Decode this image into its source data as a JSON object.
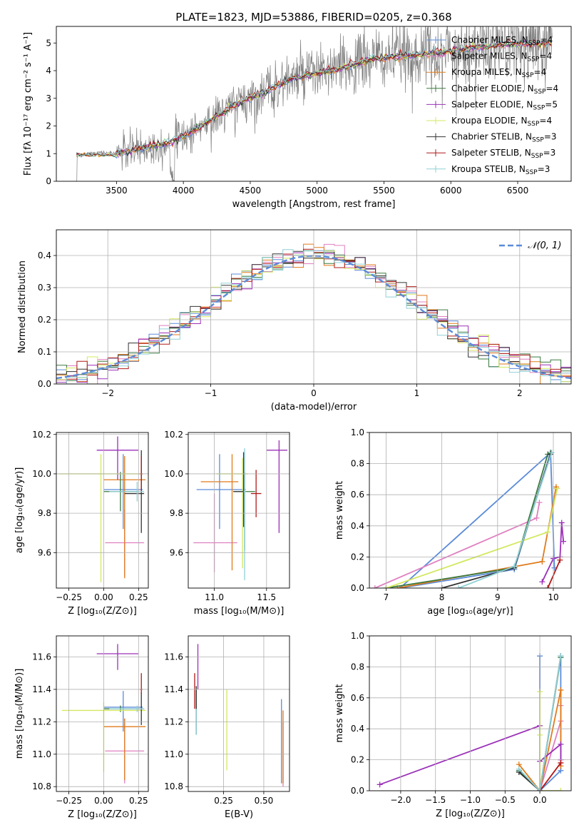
{
  "title": "PLATE=1823, MJD=53886, FIBERID=0205, z=0.368",
  "colors": {
    "Chabrier MILES": "#5b8bd9",
    "Salpeter MILES": "#e07fc0",
    "Kroupa MILES": "#e07b1b",
    "Chabrier ELODIE": "#3a7a40",
    "Salpeter ELODIE": "#9b30b8",
    "Kroupa ELODIE": "#d4e860",
    "Chabrier STELIB": "#333333",
    "Salpeter STELIB": "#b01818",
    "Kroupa STELIB": "#8fd0d6",
    "data": "#808080",
    "gauss": "#5b8bd9"
  },
  "chart_data": [
    {
      "id": "spectrum",
      "type": "line",
      "xlabel": "wavelength [Angstrom, rest frame]",
      "ylabel": "Flux [f$_\\lambda$ 10$^{-17}$ erg cm$^{-2}$ s$^{-1}$ A$^{-1}$]",
      "xlim": [
        3050,
        6900
      ],
      "ylim": [
        0,
        5.6
      ],
      "xticks": [
        "3500",
        "4000",
        "4500",
        "5000",
        "5500",
        "6000",
        "6500"
      ],
      "yticks": [
        "0",
        "1",
        "2",
        "3",
        "4",
        "5"
      ],
      "data_trend": {
        "x": [
          3200,
          3350,
          3500,
          3700,
          3900,
          4000,
          4200,
          4400,
          4600,
          4800,
          5000,
          5200,
          5400,
          5600,
          5800,
          6000,
          6200,
          6400,
          6700
        ],
        "y": [
          0.9,
          1.05,
          1.0,
          1.2,
          1.4,
          1.6,
          2.2,
          2.8,
          3.2,
          3.7,
          3.9,
          4.1,
          4.4,
          4.5,
          4.6,
          4.7,
          4.85,
          4.95,
          5.0
        ]
      },
      "legend": [
        "Chabrier MILES, N$_{SSP}$=4",
        "Salpeter MILES, N$_{SSP}$=4",
        "Kroupa MILES, N$_{SSP}$=4",
        "Chabrier ELODIE, N$_{SSP}$=4",
        "Salpeter ELODIE, N$_{SSP}$=5",
        "Kroupa ELODIE, N$_{SSP}$=4",
        "Chabrier STELIB, N$_{SSP}$=3",
        "Salpeter STELIB, N$_{SSP}$=3",
        "Kroupa STELIB, N$_{SSP}$=3"
      ],
      "legend_display": [
        {
          "name": "Chabrier MILES, N",
          "sub": "SSP",
          "val": "=4"
        },
        {
          "name": "Salpeter MILES, N",
          "sub": "SSP",
          "val": "=4"
        },
        {
          "name": "Kroupa MILES, N",
          "sub": "SSP",
          "val": "=4"
        },
        {
          "name": "Chabrier ELODIE, N",
          "sub": "SSP",
          "val": "=4"
        },
        {
          "name": "Salpeter ELODIE, N",
          "sub": "SSP",
          "val": "=5"
        },
        {
          "name": "Kroupa ELODIE, N",
          "sub": "SSP",
          "val": "=4"
        },
        {
          "name": "Chabrier STELIB, N",
          "sub": "SSP",
          "val": "=3"
        },
        {
          "name": "Salpeter STELIB, N",
          "sub": "SSP",
          "val": "=3"
        },
        {
          "name": "Kroupa STELIB, N",
          "sub": "SSP",
          "val": "=3"
        }
      ]
    },
    {
      "id": "residuals",
      "type": "line",
      "xlabel": "(data-model)/error",
      "ylabel": "Normed distribution",
      "xlim": [
        -2.5,
        2.5
      ],
      "ylim": [
        0,
        0.48
      ],
      "xticks": [
        "−2",
        "−1",
        "0",
        "1",
        "2"
      ],
      "yticks": [
        "0.0",
        "0.1",
        "0.2",
        "0.3",
        "0.4"
      ],
      "legend": "𝒩(0, 1)",
      "bin_width": 0.1
    },
    {
      "id": "age_vs_Z",
      "type": "scatter",
      "xlabel": "Z [log₁₀(Z/Z⊙)]",
      "ylabel": "age  [log₁₀(age/yr)]",
      "xlim": [
        -0.34,
        0.32
      ],
      "ylim": [
        9.42,
        10.21
      ],
      "xticks": [
        -0.25,
        0.0,
        0.25
      ],
      "xtick_labels": [
        "−0.25",
        "0.00",
        "0.25"
      ],
      "yticks": [
        9.6,
        9.8,
        10.0,
        10.2
      ],
      "ytick_labels": [
        "9.6",
        "9.8",
        "10.0",
        "10.2"
      ],
      "points": [
        {
          "series": "Chabrier MILES",
          "x": 0.14,
          "y": 9.92,
          "xerr": [
            0.14,
            0.14
          ],
          "yerr": [
            0.2,
            0.18
          ]
        },
        {
          "series": "Salpeter MILES",
          "x": 0.15,
          "y": 9.65,
          "xerr": [
            0.14,
            0.14
          ],
          "yerr": [
            0.17,
            0.17
          ]
        },
        {
          "series": "Kroupa MILES",
          "x": 0.15,
          "y": 9.97,
          "xerr": [
            0.15,
            0.15
          ],
          "yerr": [
            0.5,
            0.12
          ]
        },
        {
          "series": "Chabrier ELODIE",
          "x": 0.12,
          "y": 9.91,
          "xerr": [
            0.12,
            0.12
          ],
          "yerr": [
            0.1,
            0.1
          ]
        },
        {
          "series": "Salpeter ELODIE",
          "x": 0.1,
          "y": 10.12,
          "xerr": [
            0.15,
            0.15
          ],
          "yerr": [
            0.15,
            0.07
          ]
        },
        {
          "series": "Kroupa ELODIE",
          "x": -0.02,
          "y": 10.0,
          "xerr": [
            0.3,
            0.3
          ],
          "yerr": [
            0.55,
            0.1
          ]
        },
        {
          "series": "Chabrier STELIB",
          "x": 0.27,
          "y": 9.9,
          "xerr": [
            0.12,
            0.02
          ],
          "yerr": [
            0.2,
            0.22
          ]
        },
        {
          "series": "Salpeter STELIB",
          "x": 0.27,
          "y": 10.0,
          "xerr": [
            0.01,
            0.01
          ],
          "yerr": [
            0.09,
            0.09
          ]
        },
        {
          "series": "Kroupa STELIB",
          "x": 0.24,
          "y": 9.91,
          "xerr": [
            0.2,
            0.05
          ],
          "yerr": [
            0.05,
            0.05
          ]
        }
      ]
    },
    {
      "id": "age_vs_mass",
      "type": "scatter",
      "xlabel": "mass [log₁₀(M/M⊙)]",
      "ylabel": "",
      "xlim": [
        10.75,
        11.72
      ],
      "ylim": [
        9.42,
        10.21
      ],
      "xticks": [
        11.0,
        11.5
      ],
      "xtick_labels": [
        "11.0",
        "11.5"
      ],
      "yticks": [
        9.6,
        9.8,
        10.0,
        10.2
      ],
      "ytick_labels": [
        "9.6",
        "9.8",
        "10.0",
        "10.2"
      ],
      "points": [
        {
          "series": "Chabrier MILES",
          "x": 11.05,
          "y": 9.92,
          "xerr": [
            0.22,
            0.25
          ],
          "yerr": [
            0.2,
            0.18
          ]
        },
        {
          "series": "Salpeter MILES",
          "x": 11.0,
          "y": 9.65,
          "xerr": [
            0.2,
            0.22
          ],
          "yerr": [
            0.15,
            0.25
          ]
        },
        {
          "series": "Kroupa MILES",
          "x": 11.17,
          "y": 9.96,
          "xerr": [
            0.3,
            0.06
          ],
          "yerr": [
            0.45,
            0.14
          ]
        },
        {
          "series": "Chabrier ELODIE",
          "x": 11.29,
          "y": 9.91,
          "xerr": [
            0.1,
            0.1
          ],
          "yerr": [
            0.3,
            0.1
          ]
        },
        {
          "series": "Salpeter ELODIE",
          "x": 11.62,
          "y": 10.12,
          "xerr": [
            0.12,
            0.08
          ],
          "yerr": [
            0.42,
            0.05
          ]
        },
        {
          "series": "Kroupa ELODIE",
          "x": 11.27,
          "y": 10.0,
          "xerr": [
            0.25,
            0.05
          ],
          "yerr": [
            0.48,
            0.08
          ]
        },
        {
          "series": "Chabrier STELIB",
          "x": 11.28,
          "y": 9.91,
          "xerr": [
            0.1,
            0.02
          ],
          "yerr": [
            0.18,
            0.2
          ]
        },
        {
          "series": "Salpeter STELIB",
          "x": 11.4,
          "y": 9.9,
          "xerr": [
            0.05,
            0.05
          ],
          "yerr": [
            0.12,
            0.12
          ]
        },
        {
          "series": "Kroupa STELIB",
          "x": 11.29,
          "y": 9.91,
          "xerr": [
            0.01,
            0.01
          ],
          "yerr": [
            0.45,
            0.22
          ]
        }
      ]
    },
    {
      "id": "mass_weight_vs_age",
      "type": "line",
      "xlabel": "age  [log₁₀(age/yr)]",
      "ylabel": "mass weight",
      "xlim": [
        6.7,
        10.32
      ],
      "ylim": [
        0,
        1.0
      ],
      "xticks": [
        7,
        8,
        9,
        10
      ],
      "xtick_labels": [
        "7",
        "8",
        "9",
        "10"
      ],
      "yticks": [
        0.0,
        0.2,
        0.4,
        0.6,
        0.8,
        1.0
      ],
      "ytick_labels": [
        "0.0",
        "0.2",
        "0.4",
        "0.6",
        "0.8",
        "1.0"
      ],
      "series": [
        {
          "name": "Chabrier MILES",
          "x": [
            10.02,
            9.95,
            7.25,
            9.3,
            9.95,
            10.02
          ],
          "y": [
            0.13,
            0.87,
            0.0,
            0.12,
            0.87,
            0.13
          ]
        },
        {
          "name": "Salpeter MILES",
          "x": [
            6.8,
            9.7,
            9.75
          ],
          "y": [
            0.0,
            0.45,
            0.55
          ]
        },
        {
          "name": "Kroupa MILES",
          "x": [
            7.2,
            9.8,
            10.05,
            10.06
          ],
          "y": [
            0.0,
            0.17,
            0.65,
            0.64
          ]
        },
        {
          "name": "Chabrier ELODIE",
          "x": [
            7.0,
            9.3,
            9.9,
            9.95
          ],
          "y": [
            0.0,
            0.13,
            0.86,
            0.87
          ]
        },
        {
          "name": "Salpeter ELODIE",
          "x": [
            9.8,
            10.0,
            10.12,
            10.15,
            10.18
          ],
          "y": [
            0.04,
            0.19,
            0.2,
            0.42,
            0.3
          ]
        },
        {
          "name": "Kroupa ELODIE",
          "x": [
            7.0,
            9.9,
            10.07
          ],
          "y": [
            0.0,
            0.36,
            0.64
          ]
        },
        {
          "name": "Chabrier STELIB",
          "x": [
            8.0,
            9.3,
            9.95
          ],
          "y": [
            0.0,
            0.13,
            0.86
          ]
        },
        {
          "name": "Salpeter STELIB",
          "x": [
            9.9,
            10.12
          ],
          "y": [
            0.0,
            0.18
          ]
        },
        {
          "name": "Kroupa STELIB",
          "x": [
            8.3,
            9.3,
            9.97
          ],
          "y": [
            0.0,
            0.14,
            0.87
          ]
        }
      ]
    },
    {
      "id": "mass_vs_Z",
      "type": "scatter",
      "xlabel": "Z [log₁₀(Z/Z⊙)]",
      "ylabel": "mass [log₁₀(M/M⊙)]",
      "xlim": [
        -0.34,
        0.32
      ],
      "ylim": [
        10.77,
        11.73
      ],
      "xticks": [
        -0.25,
        0.0,
        0.25
      ],
      "xtick_labels": [
        "−0.25",
        "0.00",
        "0.25"
      ],
      "yticks": [
        10.8,
        11.0,
        11.2,
        11.4,
        11.6
      ],
      "ytick_labels": [
        "10.8",
        "11.0",
        "11.2",
        "11.4",
        "11.6"
      ],
      "points": [
        {
          "series": "Chabrier MILES",
          "x": 0.14,
          "y": 11.29,
          "xerr": [
            0.14,
            0.14
          ],
          "yerr": [
            0.15,
            0.1
          ]
        },
        {
          "series": "Salpeter MILES",
          "x": 0.15,
          "y": 11.02,
          "xerr": [
            0.14,
            0.14
          ],
          "yerr": [
            0.2,
            0.2
          ]
        },
        {
          "series": "Kroupa MILES",
          "x": 0.15,
          "y": 11.17,
          "xerr": [
            0.15,
            0.15
          ],
          "yerr": [
            0.33,
            0.05
          ]
        },
        {
          "series": "Chabrier ELODIE",
          "x": 0.12,
          "y": 11.28,
          "xerr": [
            0.12,
            0.12
          ],
          "yerr": [
            0.02,
            0.02
          ]
        },
        {
          "series": "Salpeter ELODIE",
          "x": 0.1,
          "y": 11.62,
          "xerr": [
            0.15,
            0.15
          ],
          "yerr": [
            0.1,
            0.06
          ]
        },
        {
          "series": "Kroupa ELODIE",
          "x": 0.0,
          "y": 11.27,
          "xerr": [
            0.3,
            0.3
          ],
          "yerr": [
            0.38,
            0.05
          ]
        },
        {
          "series": "Chabrier STELIB",
          "x": 0.27,
          "y": 11.28,
          "xerr": [
            0.12,
            0.02
          ],
          "yerr": [
            0.1,
            0.1
          ]
        },
        {
          "series": "Salpeter STELIB",
          "x": 0.27,
          "y": 11.4,
          "xerr": [
            0.01,
            0.01
          ],
          "yerr": [
            0.03,
            0.1
          ]
        },
        {
          "series": "Kroupa STELIB",
          "x": 0.24,
          "y": 11.28,
          "xerr": [
            0.2,
            0.05
          ],
          "yerr": [
            0.02,
            0.02
          ]
        }
      ]
    },
    {
      "id": "mass_vs_ebv",
      "type": "scatter",
      "xlabel": "E(B-V)",
      "ylabel": "",
      "xlim": [
        0.03,
        0.66
      ],
      "ylim": [
        10.77,
        11.73
      ],
      "xticks": [
        0.25,
        0.5
      ],
      "xtick_labels": [
        "0.25",
        "0.50"
      ],
      "yticks": [
        10.8,
        11.0,
        11.2,
        11.4,
        11.6
      ],
      "ytick_labels": [
        "10.8",
        "11.0",
        "11.2",
        "11.4",
        "11.6"
      ],
      "points": [
        {
          "series": "Chabrier MILES",
          "x": 0.61,
          "y": 11.1,
          "xerr": [
            0,
            0
          ],
          "yerr": [
            0.28,
            0.24
          ]
        },
        {
          "series": "Salpeter MILES",
          "x": 0.62,
          "y": 11.0,
          "xerr": [
            0,
            0
          ],
          "yerr": [
            0.2,
            0.2
          ]
        },
        {
          "series": "Kroupa MILES",
          "x": 0.62,
          "y": 11.05,
          "xerr": [
            0,
            0
          ],
          "yerr": [
            0.23,
            0.22
          ]
        },
        {
          "series": "Chabrier ELODIE",
          "x": 0.08,
          "y": 11.3,
          "xerr": [
            0,
            0
          ],
          "yerr": [
            0.15,
            0.1
          ]
        },
        {
          "series": "Salpeter ELODIE",
          "x": 0.09,
          "y": 11.55,
          "xerr": [
            0,
            0
          ],
          "yerr": [
            0.15,
            0.13
          ]
        },
        {
          "series": "Kroupa ELODIE",
          "x": 0.27,
          "y": 11.15,
          "xerr": [
            0,
            0
          ],
          "yerr": [
            0.25,
            0.25
          ]
        },
        {
          "series": "Chabrier STELIB",
          "x": 0.08,
          "y": 11.25,
          "xerr": [
            0,
            0
          ],
          "yerr": [
            0.13,
            0.17
          ]
        },
        {
          "series": "Salpeter STELIB",
          "x": 0.07,
          "y": 11.4,
          "xerr": [
            0,
            0
          ],
          "yerr": [
            0.12,
            0.1
          ]
        },
        {
          "series": "Kroupa STELIB",
          "x": 0.08,
          "y": 11.2,
          "xerr": [
            0,
            0
          ],
          "yerr": [
            0.08,
            0.08
          ]
        }
      ]
    },
    {
      "id": "mass_weight_vs_Z",
      "type": "line",
      "xlabel": "Z [log₁₀(Z/Z⊙)]",
      "ylabel": "mass weight",
      "xlim": [
        -2.45,
        0.45
      ],
      "ylim": [
        0,
        1.0
      ],
      "xticks": [
        -2.0,
        -1.5,
        -1.0,
        -0.5,
        0.0
      ],
      "xtick_labels": [
        "−2.0",
        "−1.5",
        "−1.0",
        "−0.5",
        "0.0"
      ],
      "yticks": [
        0.0,
        0.2,
        0.4,
        0.6,
        0.8,
        1.0
      ],
      "ytick_labels": [
        "0.0",
        "0.2",
        "0.4",
        "0.6",
        "0.8",
        "1.0"
      ],
      "series": [
        {
          "name": "Chabrier MILES",
          "x": [
            0.0,
            0.0,
            0.3,
            0.3
          ],
          "y": [
            0.87,
            0.0,
            0.13,
            0.87
          ]
        },
        {
          "name": "Salpeter MILES",
          "x": [
            0.0,
            0.3,
            0.3
          ],
          "y": [
            0.0,
            0.45,
            0.55
          ]
        },
        {
          "name": "Kroupa MILES",
          "x": [
            -0.3,
            0.0,
            0.3,
            0.3
          ],
          "y": [
            0.17,
            0.0,
            0.65,
            0.16
          ]
        },
        {
          "name": "Chabrier ELODIE",
          "x": [
            -0.3,
            0.0,
            0.3
          ],
          "y": [
            0.13,
            0.0,
            0.86
          ]
        },
        {
          "name": "Salpeter ELODIE",
          "x": [
            -2.3,
            0.0,
            0.0,
            0.3,
            0.3
          ],
          "y": [
            0.04,
            0.42,
            0.19,
            0.3,
            0.2
          ]
        },
        {
          "name": "Kroupa ELODIE",
          "x": [
            0.0,
            0.0,
            0.0,
            0.3
          ],
          "y": [
            0.64,
            0.36,
            0.0,
            0.0
          ]
        },
        {
          "name": "Chabrier STELIB",
          "x": [
            -0.3,
            0.0,
            0.3
          ],
          "y": [
            0.12,
            0.0,
            0.87
          ]
        },
        {
          "name": "Salpeter STELIB",
          "x": [
            0.0,
            0.3
          ],
          "y": [
            0.0,
            0.18
          ]
        },
        {
          "name": "Kroupa STELIB",
          "x": [
            -0.3,
            0.0,
            0.3
          ],
          "y": [
            0.14,
            0.0,
            0.87
          ]
        }
      ]
    }
  ]
}
